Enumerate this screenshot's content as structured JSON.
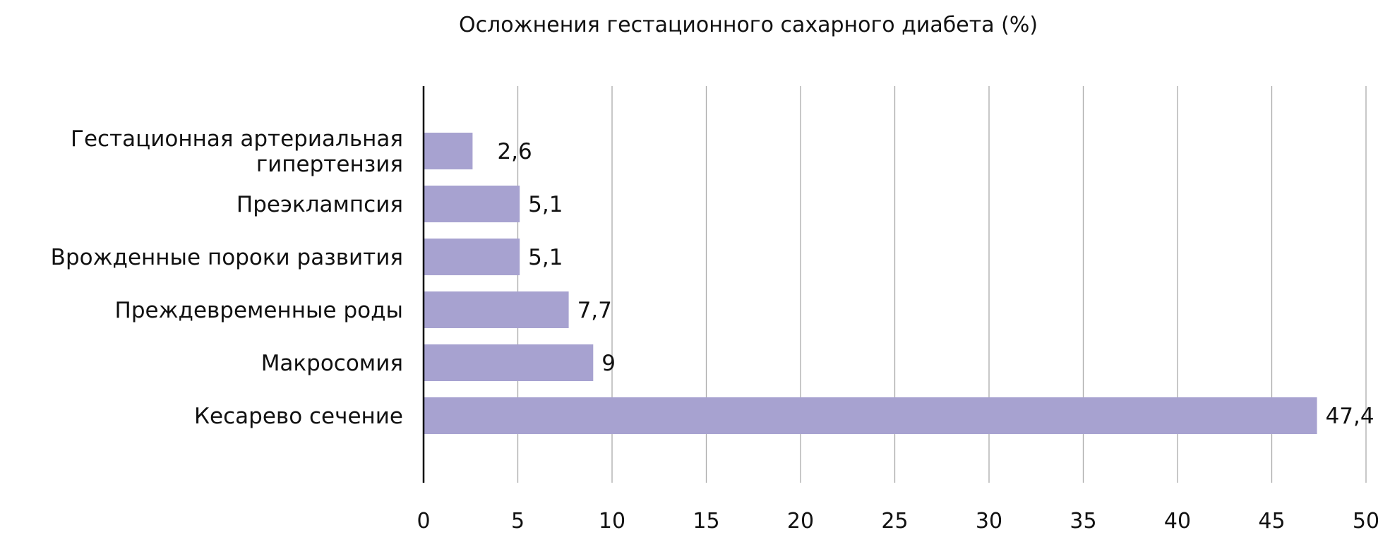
{
  "chart_data": {
    "type": "bar",
    "orientation": "horizontal",
    "title": "Осложнения гестационного сахарного диабета (%)",
    "xlabel": "",
    "ylabel": "",
    "categories": [
      "Гестационная артериальная гипертензия",
      "Преэклампсия",
      "Врожденные пороки развития",
      "Преждевременные роды",
      "Макросомия",
      "Кесарево сечение"
    ],
    "category_lines": [
      [
        "Гестационная артериальная",
        "гипертензия"
      ],
      [
        "Преэклампсия"
      ],
      [
        "Врожденные пороки развития"
      ],
      [
        "Преждевременные роды"
      ],
      [
        "Макросомия"
      ],
      [
        "Кесарево сечение"
      ]
    ],
    "values": [
      2.6,
      5.1,
      5.1,
      7.7,
      9,
      47.4
    ],
    "value_labels": [
      "2,6",
      "5,1",
      "5,1",
      "7,7",
      "9",
      "47,4"
    ],
    "xlim": [
      0,
      50
    ],
    "xticks": [
      0,
      5,
      10,
      15,
      20,
      25,
      30,
      35,
      40,
      45,
      50
    ],
    "grid": "vertical",
    "bar_color": "#a7a2d0"
  }
}
